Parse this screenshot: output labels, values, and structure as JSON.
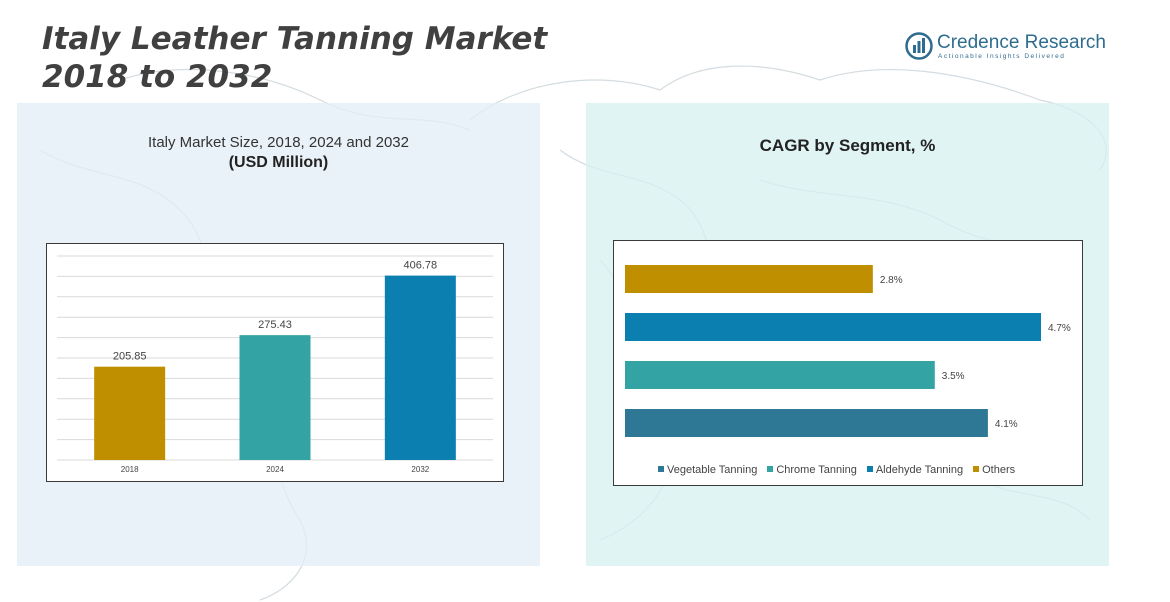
{
  "header": {
    "title": "Italy Leather Tanning Market\n2018 to 2032"
  },
  "logo": {
    "name": "Credence Research",
    "tagline": "Actionable Insights Delivered",
    "icon": "credence-bars-icon",
    "color": "#2e6c8f"
  },
  "left_panel": {
    "title": "Italy Market Size, 2018, 2024 and 2032",
    "subtitle": "(USD Million)"
  },
  "right_panel": {
    "title": "CAGR by Segment, %"
  },
  "chart_data": [
    {
      "type": "bar",
      "categories": [
        "2018",
        "2024",
        "2032"
      ],
      "values": [
        205.85,
        275.43,
        406.78
      ],
      "value_labels": [
        "205.85",
        "275.43",
        "406.78"
      ],
      "colors": [
        "#bf8f00",
        "#33a3a3",
        "#0a7fb0"
      ],
      "title": "Italy Market Size, 2018, 2024 and 2032",
      "ylabel": "(USD Million)",
      "ylim": [
        0,
        450
      ],
      "grid": true
    },
    {
      "type": "bar",
      "orientation": "horizontal",
      "title": "CAGR by Segment, %",
      "series": [
        {
          "name": "Others",
          "value": 2.8,
          "label": "2.8%",
          "color": "#bf8f00"
        },
        {
          "name": "Aldehyde Tanning",
          "value": 4.7,
          "label": "4.7%",
          "color": "#0a7fb0"
        },
        {
          "name": "Chrome Tanning",
          "value": 3.5,
          "label": "3.5%",
          "color": "#33a3a3"
        },
        {
          "name": "Vegetable Tanning",
          "value": 4.1,
          "label": "4.1%",
          "color": "#2e7896"
        }
      ],
      "legend": {
        "position": "bottom",
        "order": [
          "Vegetable Tanning",
          "Chrome Tanning",
          "Aldehyde Tanning",
          "Others"
        ]
      },
      "xlim": [
        0,
        4.7
      ]
    }
  ]
}
